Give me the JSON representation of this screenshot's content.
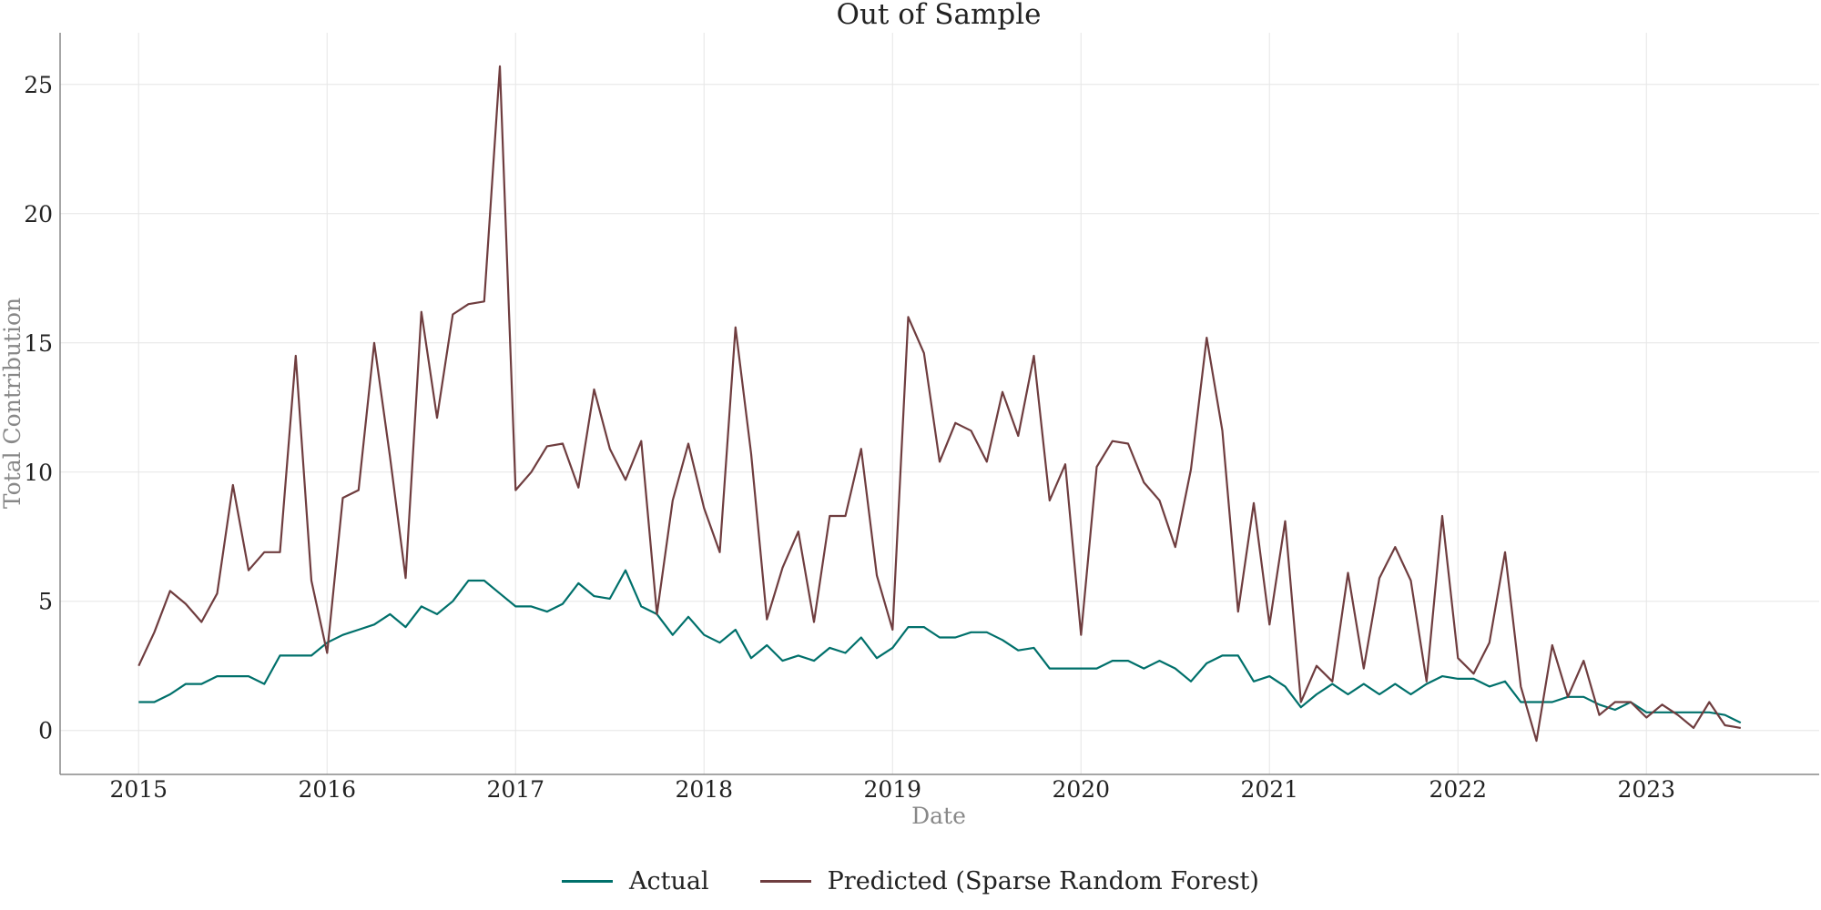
{
  "chart_data": {
    "type": "line",
    "title": "Out of Sample",
    "xlabel": "Date",
    "ylabel": "Total Contribution",
    "x_ticks": [
      "2015",
      "2016",
      "2017",
      "2018",
      "2019",
      "2020",
      "2021",
      "2022",
      "2023"
    ],
    "y_ticks": [
      "0",
      "5",
      "10",
      "15",
      "20",
      "25"
    ],
    "xlim": [
      "2014-08",
      "2023-12"
    ],
    "ylim": [
      -1.7,
      27
    ],
    "grid": true,
    "legend_position": "bottom-center",
    "x": [
      "2015-01",
      "2015-02",
      "2015-03",
      "2015-04",
      "2015-05",
      "2015-06",
      "2015-07",
      "2015-08",
      "2015-09",
      "2015-10",
      "2015-11",
      "2015-12",
      "2016-01",
      "2016-02",
      "2016-03",
      "2016-04",
      "2016-05",
      "2016-06",
      "2016-07",
      "2016-08",
      "2016-09",
      "2016-10",
      "2016-11",
      "2016-12",
      "2017-01",
      "2017-02",
      "2017-03",
      "2017-04",
      "2017-05",
      "2017-06",
      "2017-07",
      "2017-08",
      "2017-09",
      "2017-10",
      "2017-11",
      "2017-12",
      "2018-01",
      "2018-02",
      "2018-03",
      "2018-04",
      "2018-05",
      "2018-06",
      "2018-07",
      "2018-08",
      "2018-09",
      "2018-10",
      "2018-11",
      "2018-12",
      "2019-01",
      "2019-02",
      "2019-03",
      "2019-04",
      "2019-05",
      "2019-06",
      "2019-07",
      "2019-08",
      "2019-09",
      "2019-10",
      "2019-11",
      "2019-12",
      "2020-01",
      "2020-02",
      "2020-03",
      "2020-04",
      "2020-05",
      "2020-06",
      "2020-07",
      "2020-08",
      "2020-09",
      "2020-10",
      "2020-11",
      "2020-12",
      "2021-01",
      "2021-02",
      "2021-03",
      "2021-04",
      "2021-05",
      "2021-06",
      "2021-07",
      "2021-08",
      "2021-09",
      "2021-10",
      "2021-11",
      "2021-12",
      "2022-01",
      "2022-02",
      "2022-03",
      "2022-04",
      "2022-05",
      "2022-06",
      "2022-07",
      "2022-08",
      "2022-09",
      "2022-10",
      "2022-11",
      "2022-12",
      "2023-01",
      "2023-02",
      "2023-03",
      "2023-04",
      "2023-05",
      "2023-06",
      "2023-07"
    ],
    "series": [
      {
        "name": "Actual",
        "color": "#00706b",
        "values": [
          1.1,
          1.1,
          1.4,
          1.8,
          1.8,
          2.1,
          2.1,
          2.1,
          1.8,
          2.9,
          2.9,
          2.9,
          3.4,
          3.7,
          3.9,
          4.1,
          4.5,
          4.0,
          4.8,
          4.5,
          5.0,
          5.8,
          5.8,
          5.3,
          4.8,
          4.8,
          4.6,
          4.9,
          5.7,
          5.2,
          5.1,
          6.2,
          4.8,
          4.5,
          3.7,
          4.4,
          3.7,
          3.4,
          3.9,
          2.8,
          3.3,
          2.7,
          2.9,
          2.7,
          3.2,
          3.0,
          3.6,
          2.8,
          3.2,
          4.0,
          4.0,
          3.6,
          3.6,
          3.8,
          3.8,
          3.5,
          3.1,
          3.2,
          2.4,
          2.4,
          2.4,
          2.4,
          2.7,
          2.7,
          2.4,
          2.7,
          2.4,
          1.9,
          2.6,
          2.9,
          2.9,
          1.9,
          2.1,
          1.7,
          0.9,
          1.4,
          1.8,
          1.4,
          1.8,
          1.4,
          1.8,
          1.4,
          1.8,
          2.1,
          2.0,
          2.0,
          1.7,
          1.9,
          1.1,
          1.1,
          1.1,
          1.3,
          1.3,
          1.0,
          0.8,
          1.1,
          0.7,
          0.7,
          0.7,
          0.7,
          0.7,
          0.6,
          0.3
        ]
      },
      {
        "name": "Predicted (Sparse Random Forest)",
        "color": "#6f3d3f",
        "values": [
          2.5,
          3.8,
          5.4,
          4.9,
          4.2,
          5.3,
          9.5,
          6.2,
          6.9,
          6.9,
          14.5,
          5.8,
          3.0,
          9.0,
          9.3,
          15.0,
          10.6,
          5.9,
          16.2,
          12.1,
          16.1,
          16.5,
          16.6,
          25.7,
          9.3,
          10.0,
          11.0,
          11.1,
          9.4,
          13.2,
          10.9,
          9.7,
          11.2,
          4.5,
          8.9,
          11.1,
          8.6,
          6.9,
          15.6,
          10.7,
          4.3,
          6.3,
          7.7,
          4.2,
          8.3,
          8.3,
          10.9,
          6.0,
          3.9,
          16.0,
          14.6,
          10.4,
          11.9,
          11.6,
          10.4,
          13.1,
          11.4,
          14.5,
          8.9,
          10.3,
          3.7,
          10.2,
          11.2,
          11.1,
          9.6,
          8.9,
          7.1,
          10.1,
          15.2,
          11.6,
          4.6,
          8.8,
          4.1,
          8.1,
          1.1,
          2.5,
          1.9,
          6.1,
          2.4,
          5.9,
          7.1,
          5.8,
          1.9,
          8.3,
          2.8,
          2.2,
          3.4,
          6.9,
          1.7,
          -0.4,
          3.3,
          1.3,
          2.7,
          0.6,
          1.1,
          1.1,
          0.5,
          1.0,
          0.6,
          0.1,
          1.1,
          0.2,
          0.1
        ]
      }
    ]
  }
}
